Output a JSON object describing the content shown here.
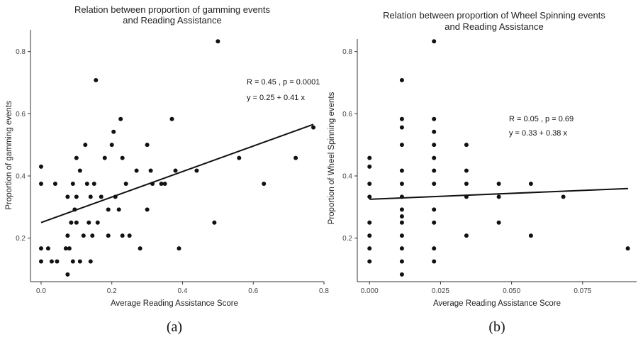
{
  "chart_data": [
    {
      "type": "scatter",
      "title_lines": [
        "Relation between proportion of gamming events",
        "and Reading Assistance"
      ],
      "xlabel": "Average Reading Assistance Score",
      "ylabel": "Proportion of gamming events",
      "xlim": [
        -0.03,
        0.8
      ],
      "ylim": [
        0.06,
        0.87
      ],
      "xticks": [
        0.0,
        0.2,
        0.4,
        0.6,
        0.8
      ],
      "xtick_labels": [
        "0.0",
        "0.2",
        "0.4",
        "0.6",
        "0.8"
      ],
      "yticks": [
        0.2,
        0.4,
        0.6,
        0.8
      ],
      "ytick_labels": [
        "0.2",
        "0.4",
        "0.6",
        "0.8"
      ],
      "stat_lines": [
        "R = 0.45 , p = 0.0001",
        "y = 0.25 + 0.41 x"
      ],
      "fit": {
        "intercept": 0.25,
        "slope": 0.41,
        "x_range": [
          0.0,
          0.77
        ]
      },
      "caption": "(a)",
      "points": [
        [
          0.0,
          0.43
        ],
        [
          0.0,
          0.375
        ],
        [
          0.0,
          0.167
        ],
        [
          0.0,
          0.125
        ],
        [
          0.02,
          0.167
        ],
        [
          0.03,
          0.125
        ],
        [
          0.04,
          0.375
        ],
        [
          0.045,
          0.125
        ],
        [
          0.07,
          0.167
        ],
        [
          0.075,
          0.083
        ],
        [
          0.075,
          0.208
        ],
        [
          0.075,
          0.333
        ],
        [
          0.08,
          0.167
        ],
        [
          0.085,
          0.25
        ],
        [
          0.09,
          0.375
        ],
        [
          0.09,
          0.125
        ],
        [
          0.095,
          0.292
        ],
        [
          0.1,
          0.25
        ],
        [
          0.1,
          0.458
        ],
        [
          0.1,
          0.333
        ],
        [
          0.11,
          0.417
        ],
        [
          0.11,
          0.125
        ],
        [
          0.12,
          0.208
        ],
        [
          0.125,
          0.5
        ],
        [
          0.13,
          0.375
        ],
        [
          0.135,
          0.25
        ],
        [
          0.14,
          0.333
        ],
        [
          0.14,
          0.125
        ],
        [
          0.145,
          0.208
        ],
        [
          0.15,
          0.375
        ],
        [
          0.155,
          0.708
        ],
        [
          0.16,
          0.25
        ],
        [
          0.17,
          0.333
        ],
        [
          0.18,
          0.458
        ],
        [
          0.19,
          0.292
        ],
        [
          0.19,
          0.208
        ],
        [
          0.2,
          0.5
        ],
        [
          0.205,
          0.542
        ],
        [
          0.21,
          0.333
        ],
        [
          0.22,
          0.292
        ],
        [
          0.225,
          0.583
        ],
        [
          0.23,
          0.208
        ],
        [
          0.23,
          0.458
        ],
        [
          0.24,
          0.375
        ],
        [
          0.25,
          0.208
        ],
        [
          0.27,
          0.417
        ],
        [
          0.28,
          0.167
        ],
        [
          0.3,
          0.292
        ],
        [
          0.3,
          0.5
        ],
        [
          0.31,
          0.417
        ],
        [
          0.315,
          0.375
        ],
        [
          0.34,
          0.375
        ],
        [
          0.35,
          0.375
        ],
        [
          0.37,
          0.583
        ],
        [
          0.38,
          0.417
        ],
        [
          0.39,
          0.167
        ],
        [
          0.44,
          0.417
        ],
        [
          0.49,
          0.25
        ],
        [
          0.5,
          0.833
        ],
        [
          0.56,
          0.458
        ],
        [
          0.63,
          0.375
        ],
        [
          0.72,
          0.458
        ],
        [
          0.77,
          0.556
        ]
      ]
    },
    {
      "type": "scatter",
      "title_lines": [
        "Relation between proportion of Wheel Spinning events",
        "and Reading Assistance"
      ],
      "xlabel": "Average Reading Assistance Score",
      "ylabel": "Proportion of Wheel Spinning events",
      "xlim": [
        -0.0043,
        0.094
      ],
      "ylim": [
        0.06,
        0.87
      ],
      "xticks": [
        0.0,
        0.025,
        0.05,
        0.075
      ],
      "xtick_labels": [
        "0.000",
        "0.025",
        "0.050",
        "0.075"
      ],
      "yticks": [
        0.2,
        0.4,
        0.6,
        0.8
      ],
      "ytick_labels": [
        "0.2",
        "0.4",
        "0.6",
        "0.8"
      ],
      "stat_lines": [
        "R = 0.05 , p = 0.69",
        "y = 0.33 + 0.38 x"
      ],
      "fit": {
        "intercept": 0.325,
        "slope": 0.38,
        "x_range": [
          0.0,
          0.091
        ]
      },
      "caption": "(b)",
      "points": [
        [
          0.0,
          0.458
        ],
        [
          0.0,
          0.43
        ],
        [
          0.0,
          0.375
        ],
        [
          0.0,
          0.333
        ],
        [
          0.0,
          0.25
        ],
        [
          0.0,
          0.208
        ],
        [
          0.0,
          0.167
        ],
        [
          0.0,
          0.125
        ],
        [
          0.0114,
          0.708
        ],
        [
          0.0114,
          0.583
        ],
        [
          0.0114,
          0.556
        ],
        [
          0.0114,
          0.5
        ],
        [
          0.0114,
          0.417
        ],
        [
          0.0114,
          0.375
        ],
        [
          0.0114,
          0.333
        ],
        [
          0.0114,
          0.292
        ],
        [
          0.0114,
          0.27
        ],
        [
          0.0114,
          0.25
        ],
        [
          0.0114,
          0.208
        ],
        [
          0.0114,
          0.167
        ],
        [
          0.0114,
          0.125
        ],
        [
          0.0114,
          0.083
        ],
        [
          0.0227,
          0.833
        ],
        [
          0.0227,
          0.583
        ],
        [
          0.0227,
          0.542
        ],
        [
          0.0227,
          0.5
        ],
        [
          0.0227,
          0.458
        ],
        [
          0.0227,
          0.417
        ],
        [
          0.0227,
          0.375
        ],
        [
          0.0227,
          0.292
        ],
        [
          0.0227,
          0.25
        ],
        [
          0.0227,
          0.167
        ],
        [
          0.0227,
          0.125
        ],
        [
          0.0341,
          0.5
        ],
        [
          0.0341,
          0.417
        ],
        [
          0.0341,
          0.375
        ],
        [
          0.0341,
          0.333
        ],
        [
          0.0341,
          0.208
        ],
        [
          0.0455,
          0.375
        ],
        [
          0.0455,
          0.333
        ],
        [
          0.0455,
          0.25
        ],
        [
          0.0568,
          0.375
        ],
        [
          0.0568,
          0.208
        ],
        [
          0.0682,
          0.333
        ],
        [
          0.0909,
          0.167
        ]
      ]
    }
  ]
}
